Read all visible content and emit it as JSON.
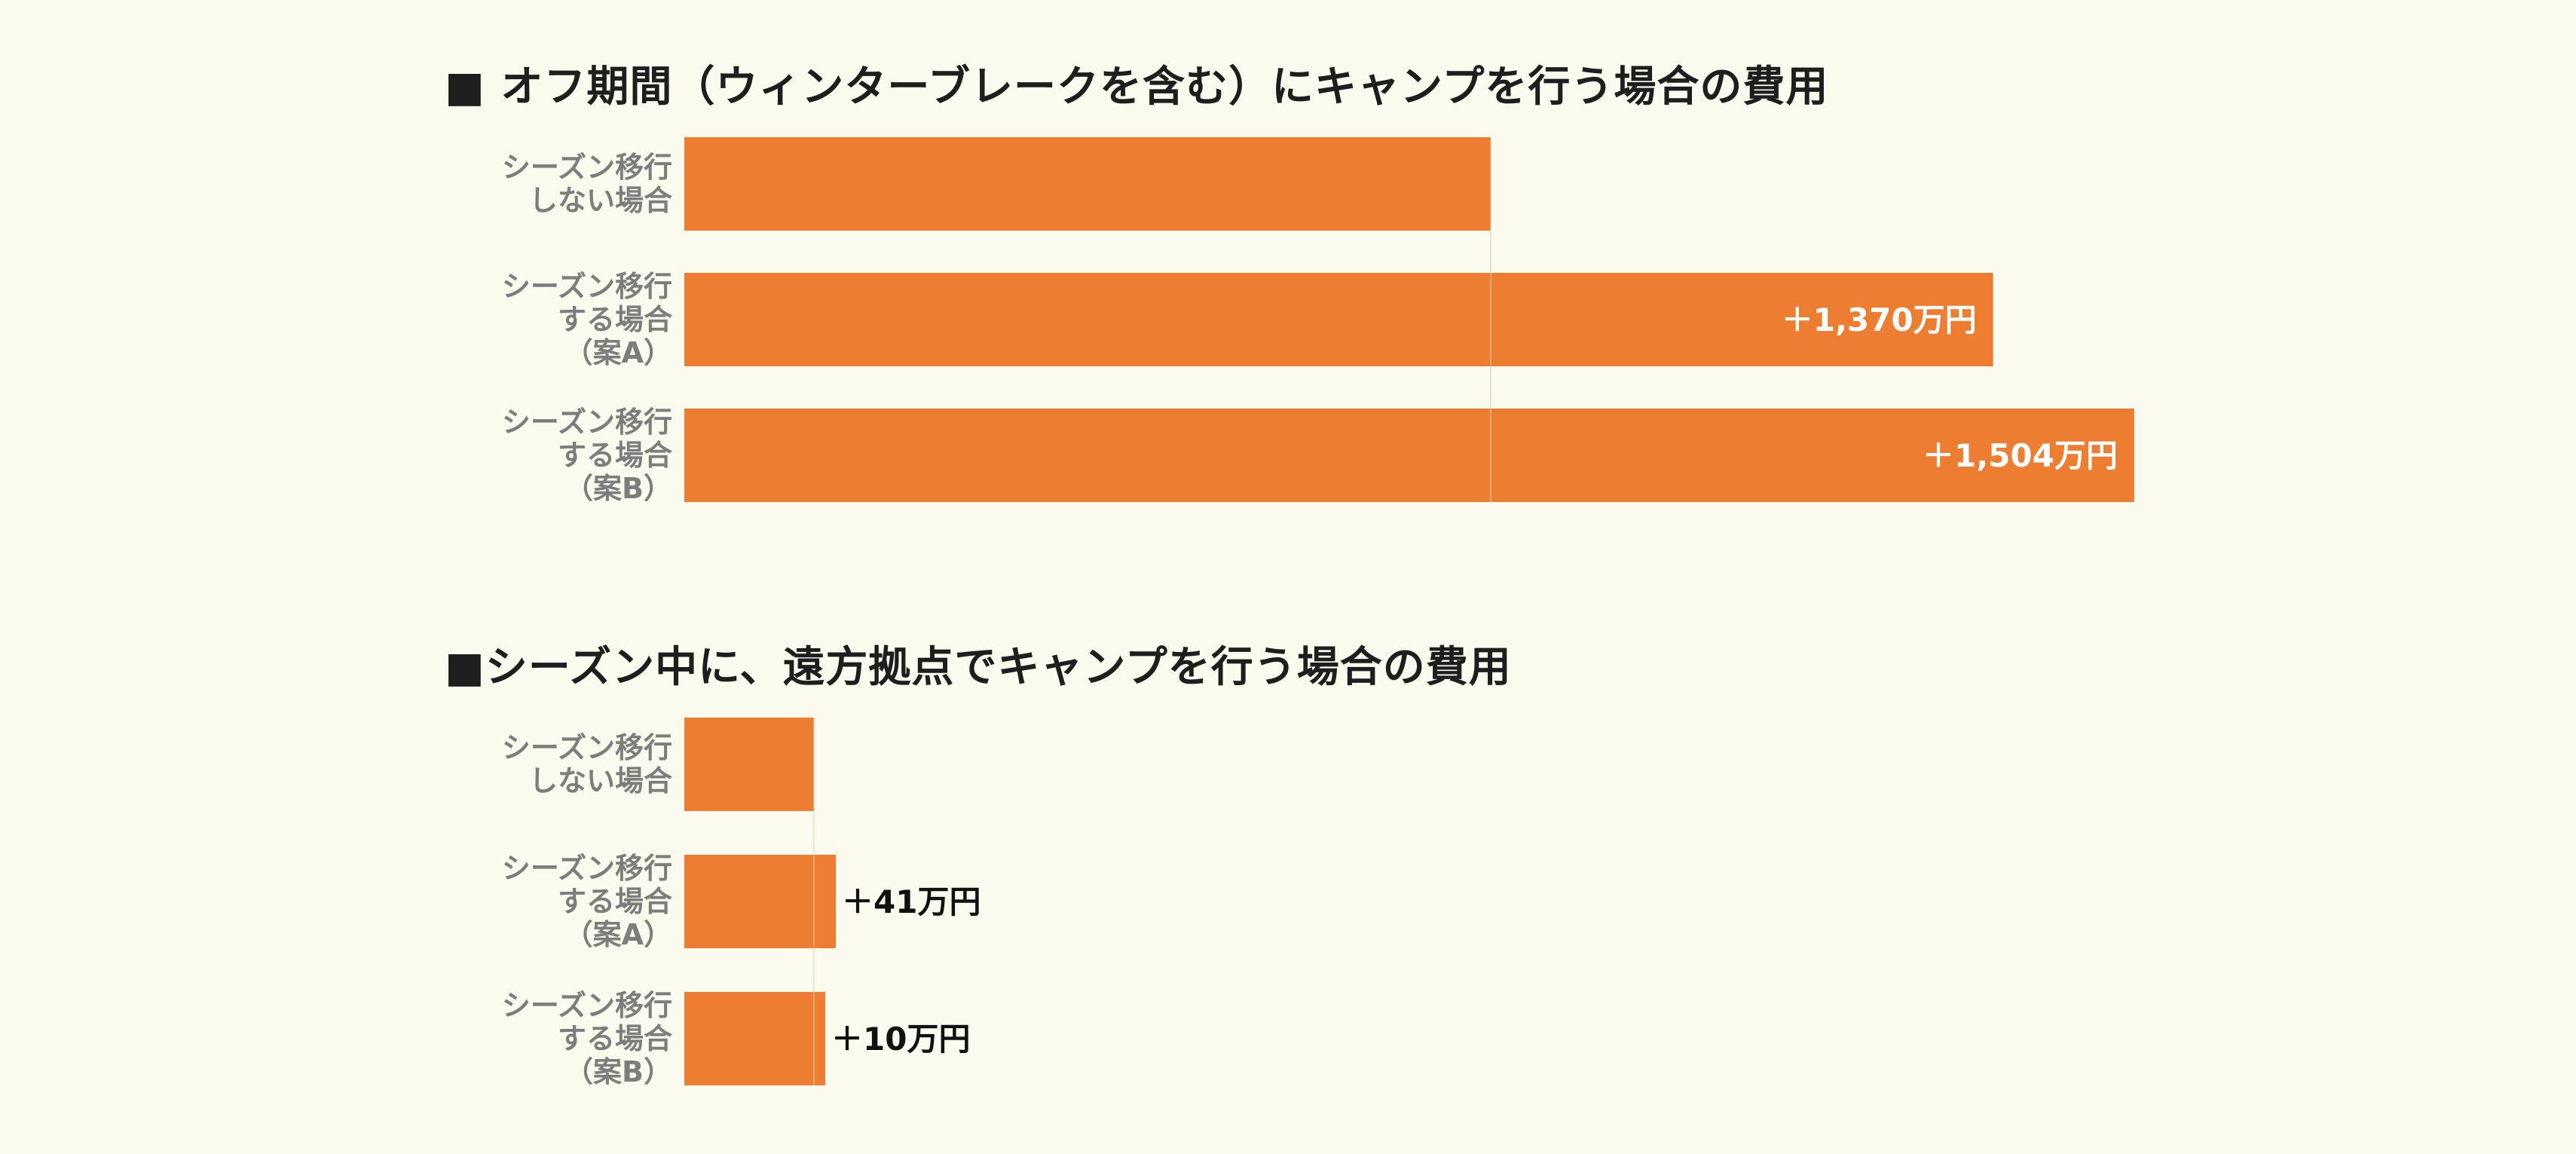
{
  "colors": {
    "background": "#fafaee",
    "bar": "#ed7d31",
    "title": "#1e1e1e",
    "category_label": "#7d7d7d",
    "inside_label": "#ffffff",
    "outside_label": "#111111",
    "reference_line": "#d9cdb8"
  },
  "chart_data": [
    {
      "type": "bar",
      "orientation": "horizontal",
      "title": "■ オフ期間（ウィンターブレークを含む）にキャンプを行う場合の費用",
      "categories": [
        [
          "シーズン移行",
          "しない場合"
        ],
        [
          "シーズン移行",
          "する場合",
          "（案A）"
        ],
        [
          "シーズン移行",
          "する場合",
          "（案B）"
        ]
      ],
      "values": [
        1000,
        1623,
        1798
      ],
      "data_labels": [
        "",
        "＋1,370万円",
        "＋1,504万円"
      ],
      "label_position": "inside",
      "grid": false
    },
    {
      "type": "bar",
      "orientation": "horizontal",
      "title": "■シーズン中に、遠方拠点でキャンプを行う場合の費用",
      "categories": [
        [
          "シーズン移行",
          "しない場合"
        ],
        [
          "シーズン移行",
          "する場合",
          "（案A）"
        ],
        [
          "シーズン移行",
          "する場合",
          "（案B）"
        ]
      ],
      "values": [
        160,
        187,
        174
      ],
      "data_labels": [
        "",
        "＋41万円",
        "＋10万円"
      ],
      "label_position": "outside",
      "grid": false
    }
  ]
}
